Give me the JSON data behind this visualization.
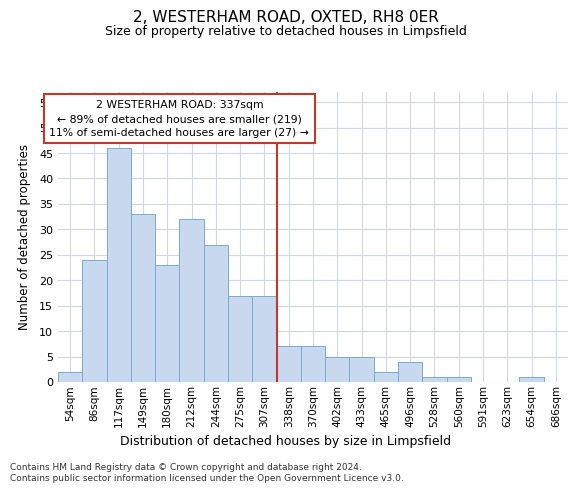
{
  "title": "2, WESTERHAM ROAD, OXTED, RH8 0ER",
  "subtitle": "Size of property relative to detached houses in Limpsfield",
  "xlabel": "Distribution of detached houses by size in Limpsfield",
  "ylabel": "Number of detached properties",
  "bar_labels": [
    "54sqm",
    "86sqm",
    "117sqm",
    "149sqm",
    "180sqm",
    "212sqm",
    "244sqm",
    "275sqm",
    "307sqm",
    "338sqm",
    "370sqm",
    "402sqm",
    "433sqm",
    "465sqm",
    "496sqm",
    "528sqm",
    "560sqm",
    "591sqm",
    "623sqm",
    "654sqm",
    "686sqm"
  ],
  "bar_heights": [
    2,
    24,
    46,
    33,
    23,
    32,
    27,
    17,
    17,
    7,
    7,
    5,
    5,
    2,
    4,
    1,
    1,
    0,
    0,
    1,
    0
  ],
  "bar_color": "#c8d8ee",
  "bar_edge_color": "#7aaad0",
  "ylim": [
    0,
    57
  ],
  "yticks": [
    0,
    5,
    10,
    15,
    20,
    25,
    30,
    35,
    40,
    45,
    50,
    55
  ],
  "vline_x_index": 9,
  "vline_color": "#c0392b",
  "annotation_line1": "2 WESTERHAM ROAD: 337sqm",
  "annotation_line2": "← 89% of detached houses are smaller (219)",
  "annotation_line3": "11% of semi-detached houses are larger (27) →",
  "annotation_box_color": "#c0392b",
  "footer1": "Contains HM Land Registry data © Crown copyright and database right 2024.",
  "footer2": "Contains public sector information licensed under the Open Government Licence v3.0.",
  "bg_color": "#ffffff",
  "plot_bg_color": "#ffffff",
  "grid_color": "#d0d8e8"
}
